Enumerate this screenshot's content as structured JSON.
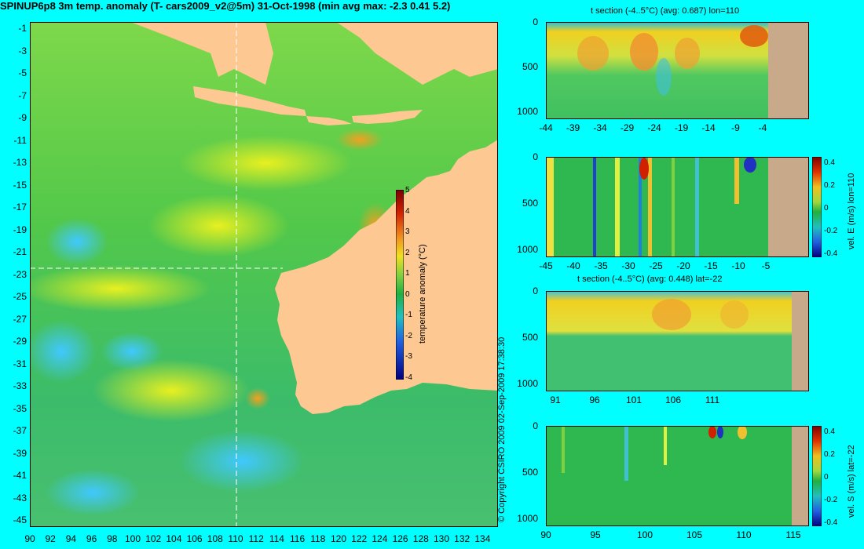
{
  "title": "SPINUP6p8 3m temp. anomaly (T- cars2009_v2@5m) 31-Oct-1998 (min avg max: -2.3 0.41 5.2)",
  "copyright": "© Copyright CSIRO 2009   02-Sep-2009 17:38:30",
  "colors": {
    "background": "#00ffff",
    "land": "#fdc891",
    "section_land": "#c8a98a"
  },
  "map": {
    "lat_ticks": [
      "-1",
      "-3",
      "-5",
      "-7",
      "-9",
      "-11",
      "-13",
      "-15",
      "-17",
      "-19",
      "-21",
      "-23",
      "-25",
      "-27",
      "-29",
      "-31",
      "-33",
      "-35",
      "-37",
      "-39",
      "-41",
      "-43",
      "-45"
    ],
    "lon_ticks": [
      "90",
      "92",
      "94",
      "96",
      "98",
      "100",
      "102",
      "104",
      "106",
      "108",
      "110",
      "112",
      "114",
      "116",
      "118",
      "120",
      "122",
      "124",
      "126",
      "128",
      "130",
      "132",
      "134"
    ],
    "colorbar": {
      "label": "temperature anomaly (°C)",
      "ticks": [
        "5",
        "4",
        "3",
        "2",
        "1",
        "0",
        "-1",
        "-2",
        "-3",
        "-4"
      ],
      "range": [
        -4,
        5
      ]
    },
    "crosshair": {
      "lon": 110,
      "lat": -22
    }
  },
  "sections": [
    {
      "title": "t section (-4..5°C) (avg: 0.687) lon=110",
      "x_ticks": [
        "-44",
        "-39",
        "-34",
        "-29",
        "-24",
        "-19",
        "-14",
        "-9",
        "-4"
      ],
      "y_ticks": [
        "0",
        "500",
        "1000"
      ],
      "colorbar": null
    },
    {
      "title": "",
      "x_ticks": [
        "-45",
        "-40",
        "-35",
        "-30",
        "-25",
        "-20",
        "-15",
        "-10",
        "-5"
      ],
      "y_ticks": [
        "0",
        "500",
        "1000"
      ],
      "colorbar": {
        "label": "vel. E (m/s) lon=110",
        "ticks": [
          "0.4",
          "0.2",
          "0",
          "-0.2",
          "-0.4"
        ]
      }
    },
    {
      "title": "t section (-4..5°C) (avg: 0.448) lat=-22",
      "x_ticks": [
        "91",
        "96",
        "101",
        "106",
        "111"
      ],
      "y_ticks": [
        "0",
        "500",
        "1000"
      ],
      "colorbar": null
    },
    {
      "title": "",
      "x_ticks": [
        "90",
        "95",
        "100",
        "105",
        "110",
        "115"
      ],
      "y_ticks": [
        "0",
        "500",
        "1000"
      ],
      "colorbar": {
        "label": "vel. S (m/s) lat=-22",
        "ticks": [
          "0.4",
          "0.2",
          "0",
          "-0.2",
          "-0.4"
        ]
      }
    }
  ]
}
